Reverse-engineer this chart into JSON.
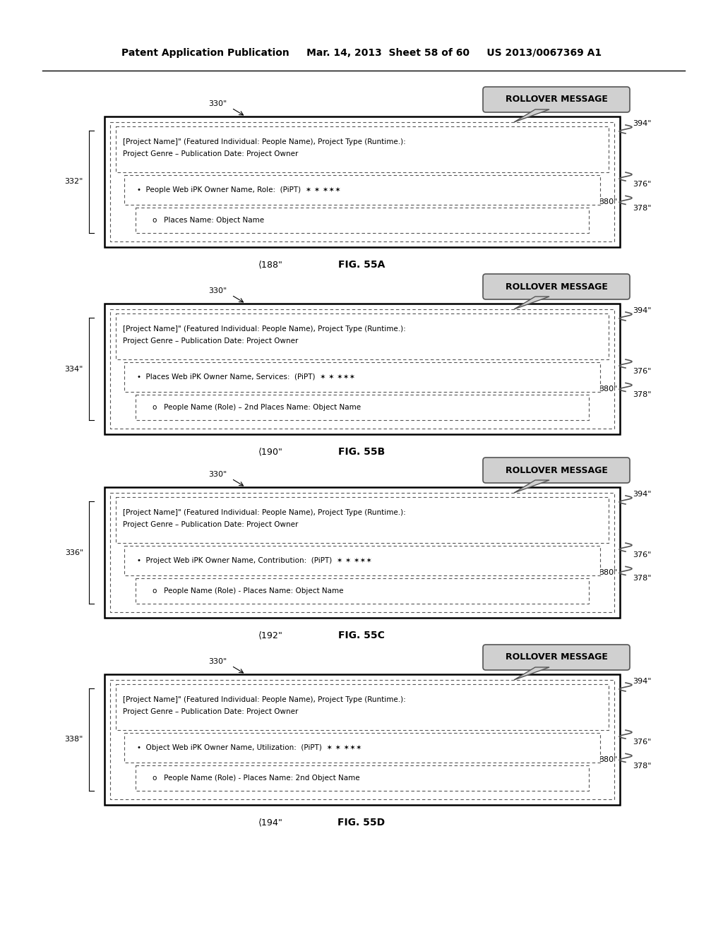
{
  "header_left": "Patent Application Publication",
  "header_mid": "Mar. 14, 2013  Sheet 58 of 60",
  "header_right": "US 2013/0067369 A1",
  "bg_color": "#ffffff",
  "figures": [
    {
      "id": "55A",
      "label_left": "332\"",
      "label_330": "330\"",
      "label_394": "394\"",
      "label_188": "188\"",
      "label_376": "376\"",
      "label_380": "380\"",
      "label_378": "378\"",
      "title_line1": "[Project Name]\" (Featured Individual: People Name), Project Type (Runtime.):",
      "title_line2": "Project Genre – Publication Date: Project Owner",
      "bullet1": "People Web iPK Owner Name, Role:  (PiPT)  ✶ ✶ ✶✶✶",
      "bullet2": "Places Name: Object Name"
    },
    {
      "id": "55B",
      "label_left": "334\"",
      "label_330": "330\"",
      "label_394": "394\"",
      "label_190": "190\"",
      "label_376": "376\"",
      "label_380": "380\"",
      "label_378": "378\"",
      "title_line1": "[Project Name]\" (Featured Individual: People Name), Project Type (Runtime.):",
      "title_line2": "Project Genre – Publication Date: Project Owner",
      "bullet1": "Places Web iPK Owner Name, Services:  (PiPT)  ✶ ✶ ✶✶✶",
      "bullet2": "People Name (Role) – 2nd Places Name: Object Name"
    },
    {
      "id": "55C",
      "label_left": "336\"",
      "label_330": "330\"",
      "label_394": "394\"",
      "label_192": "192\"",
      "label_376": "376\"",
      "label_378": "378\"",
      "label_380": "380\"",
      "title_line1": "[Project Name]\" (Featured Individual: People Name), Project Type (Runtime.):",
      "title_line2": "Project Genre – Publication Date: Project Owner",
      "bullet1": "Project Web iPK Owner Name, Contribution:  (PiPT)  ✶ ✶ ✶✶✶",
      "bullet2": "People Name (Role) - Places Name: Object Name"
    },
    {
      "id": "55D",
      "label_left": "338\"",
      "label_330": "330\"",
      "label_394": "394\"",
      "label_194": "194\"",
      "label_376": "376\"",
      "label_378": "378\"",
      "label_380": "380\"",
      "title_line1": "[Project Name]\" (Featured Individual: People Name), Project Type (Runtime.):",
      "title_line2": "Project Genre – Publication Date: Project Owner",
      "bullet1": "Object Web iPK Owner Name, Utilization:  (PiPT)  ✶ ✶ ✶✶✶",
      "bullet2": "People Name (Role) - Places Name: 2nd Object Name"
    }
  ]
}
